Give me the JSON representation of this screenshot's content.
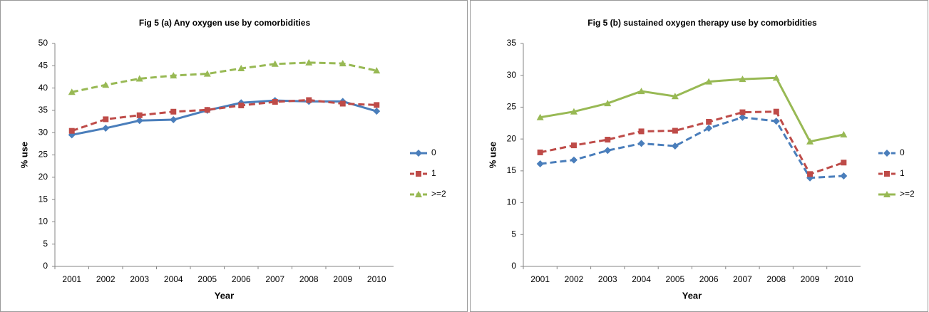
{
  "chart_data": [
    {
      "type": "line",
      "title": "Fig 5 (a) Any oxygen use by comorbidities",
      "x_label": "Year",
      "y_label": "% use",
      "categories": [
        "2001",
        "2002",
        "2003",
        "2004",
        "2005",
        "2006",
        "2007",
        "2008",
        "2009",
        "2010"
      ],
      "ylim": [
        0,
        50
      ],
      "yticks": [
        0,
        5,
        10,
        15,
        20,
        25,
        30,
        35,
        40,
        45,
        50
      ],
      "legend": "right",
      "series": [
        {
          "name": "0",
          "color": "#4a7ebb",
          "dashed": false,
          "marker": "diamond",
          "values": [
            29.5,
            31,
            32.7,
            32.9,
            35,
            36.7,
            37.2,
            37,
            37,
            34.8
          ]
        },
        {
          "name": "1",
          "color": "#be4b48",
          "dashed": true,
          "marker": "square",
          "values": [
            30.4,
            33,
            33.9,
            34.7,
            35.1,
            36.1,
            36.9,
            37.3,
            36.5,
            36.2
          ]
        },
        {
          "name": ">=2",
          "color": "#98b954",
          "dashed": true,
          "marker": "triangle",
          "values": [
            39.1,
            40.7,
            42.1,
            42.8,
            43.2,
            44.4,
            45.4,
            45.7,
            45.5,
            43.9
          ]
        }
      ]
    },
    {
      "type": "line",
      "title": "Fig 5 (b) sustained oxygen therapy use by comorbidities",
      "x_label": "Year",
      "y_label": "% use",
      "categories": [
        "2001",
        "2002",
        "2003",
        "2004",
        "2005",
        "2006",
        "2007",
        "2008",
        "2009",
        "2010"
      ],
      "ylim": [
        0,
        35
      ],
      "yticks": [
        0,
        5,
        10,
        15,
        20,
        25,
        30,
        35
      ],
      "legend": "right",
      "series": [
        {
          "name": "0",
          "color": "#4a7ebb",
          "dashed": true,
          "marker": "diamond",
          "values": [
            16.1,
            16.7,
            18.2,
            19.3,
            18.9,
            21.7,
            23.4,
            22.8,
            13.9,
            14.2
          ]
        },
        {
          "name": "1",
          "color": "#be4b48",
          "dashed": true,
          "marker": "square",
          "values": [
            17.9,
            19,
            19.9,
            21.2,
            21.3,
            22.7,
            24.2,
            24.3,
            14.5,
            16.3
          ]
        },
        {
          "name": ">=2",
          "color": "#98b954",
          "dashed": false,
          "marker": "triangle",
          "values": [
            23.4,
            24.3,
            25.6,
            27.5,
            26.7,
            29,
            29.4,
            29.6,
            19.6,
            20.7
          ]
        }
      ]
    }
  ]
}
